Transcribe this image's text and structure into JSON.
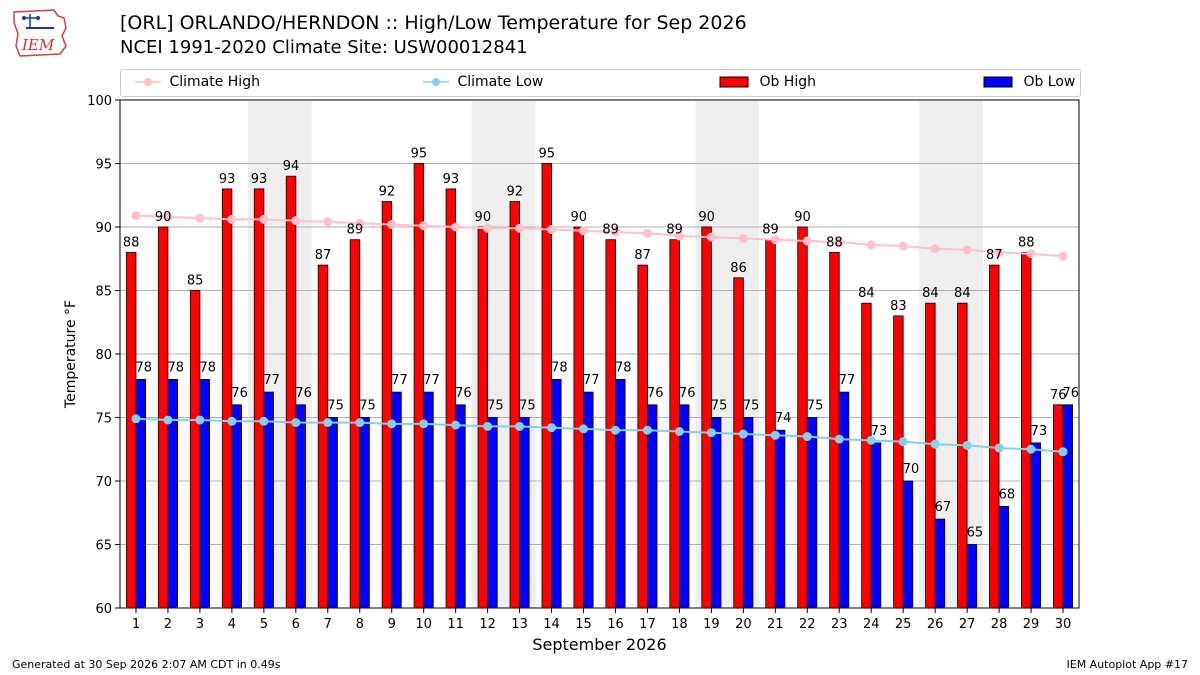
{
  "header": {
    "title": "[ORL] ORLANDO/HERNDON :: High/Low Temperature for Sep 2026",
    "subtitle": "NCEI 1991-2020 Climate Site: USW00012841",
    "logo_text": "IEM"
  },
  "legend": {
    "items": [
      {
        "label": "Climate High",
        "color": "#ffc0cb",
        "kind": "line"
      },
      {
        "label": "Climate Low",
        "color": "#87ceeb",
        "kind": "line"
      },
      {
        "label": "Ob High",
        "color": "#ff0000",
        "kind": "bar"
      },
      {
        "label": "Ob Low",
        "color": "#0000ff",
        "kind": "bar"
      }
    ]
  },
  "footer": {
    "generated": "Generated at 30 Sep 2026 2:07 AM CDT in 0.49s",
    "app": "IEM Autoplot App #17"
  },
  "chart_data": {
    "type": "bar",
    "xlabel": "September 2026",
    "ylabel": "Temperature °F",
    "ylim": [
      60,
      100
    ],
    "yticks": [
      60,
      65,
      70,
      75,
      80,
      85,
      90,
      95,
      100
    ],
    "grid": true,
    "legend_position": "top",
    "weekend_shading_days": [
      5,
      6,
      12,
      13,
      19,
      20,
      26,
      27
    ],
    "categories": [
      "1",
      "2",
      "3",
      "4",
      "5",
      "6",
      "7",
      "8",
      "9",
      "10",
      "11",
      "12",
      "13",
      "14",
      "15",
      "16",
      "17",
      "18",
      "19",
      "20",
      "21",
      "22",
      "23",
      "24",
      "25",
      "26",
      "27",
      "28",
      "29",
      "30"
    ],
    "series": [
      {
        "name": "Ob High",
        "type": "bar",
        "color": "#ff0000",
        "values": [
          88,
          90,
          85,
          93,
          93,
          94,
          87,
          89,
          92,
          95,
          93,
          90,
          92,
          95,
          90,
          89,
          87,
          89,
          90,
          86,
          89,
          90,
          88,
          84,
          83,
          84,
          84,
          87,
          88,
          76
        ]
      },
      {
        "name": "Ob Low",
        "type": "bar",
        "color": "#0000ff",
        "values": [
          78,
          78,
          78,
          76,
          77,
          76,
          75,
          75,
          77,
          77,
          76,
          75,
          75,
          78,
          77,
          78,
          76,
          76,
          75,
          75,
          74,
          75,
          77,
          73,
          70,
          67,
          65,
          68,
          73,
          76
        ]
      },
      {
        "name": "Climate High",
        "type": "line",
        "color": "#ffc0cb",
        "values": [
          90.9,
          90.8,
          90.7,
          90.6,
          90.6,
          90.5,
          90.4,
          90.3,
          90.2,
          90.1,
          90.0,
          89.9,
          89.9,
          89.8,
          89.7,
          89.6,
          89.5,
          89.3,
          89.2,
          89.1,
          89.0,
          88.9,
          88.8,
          88.6,
          88.5,
          88.3,
          88.2,
          88.0,
          87.9,
          87.7
        ]
      },
      {
        "name": "Climate Low",
        "type": "line",
        "color": "#87ceeb",
        "values": [
          74.9,
          74.8,
          74.8,
          74.7,
          74.7,
          74.6,
          74.6,
          74.6,
          74.5,
          74.5,
          74.4,
          74.3,
          74.3,
          74.2,
          74.1,
          74.0,
          74.0,
          73.9,
          73.8,
          73.7,
          73.6,
          73.5,
          73.3,
          73.2,
          73.1,
          72.9,
          72.8,
          72.6,
          72.5,
          72.3
        ]
      }
    ]
  }
}
